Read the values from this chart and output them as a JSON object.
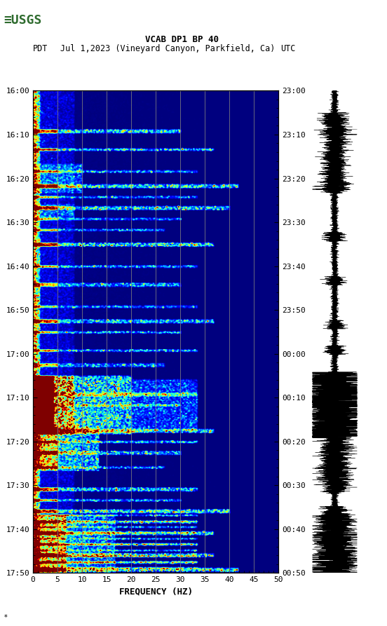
{
  "title_line1": "VCAB DP1 BP 40",
  "title_line2_pdt": "PDT",
  "title_line2_mid": "Jul 1,2023 (Vineyard Canyon, Parkfield, Ca)",
  "title_line2_utc": "UTC",
  "xlabel": "FREQUENCY (HZ)",
  "freq_min": 0,
  "freq_max": 50,
  "ytick_labels_left": [
    "16:00",
    "16:10",
    "16:20",
    "16:30",
    "16:40",
    "16:50",
    "17:00",
    "17:10",
    "17:20",
    "17:30",
    "17:40",
    "17:50"
  ],
  "ytick_labels_right": [
    "23:00",
    "23:10",
    "23:20",
    "23:30",
    "23:40",
    "23:50",
    "00:00",
    "00:10",
    "00:20",
    "00:30",
    "00:40",
    "00:50"
  ],
  "freq_ticks": [
    0,
    5,
    10,
    15,
    20,
    25,
    30,
    35,
    40,
    45,
    50
  ],
  "vertical_grid_lines": [
    5,
    10,
    15,
    20,
    25,
    30,
    35,
    40,
    45
  ],
  "fig_width": 5.52,
  "fig_height": 8.93,
  "background_color": "#ffffff",
  "usgs_color": "#2e6b2e",
  "colormap": "jet",
  "n_time": 660,
  "n_freq": 300
}
